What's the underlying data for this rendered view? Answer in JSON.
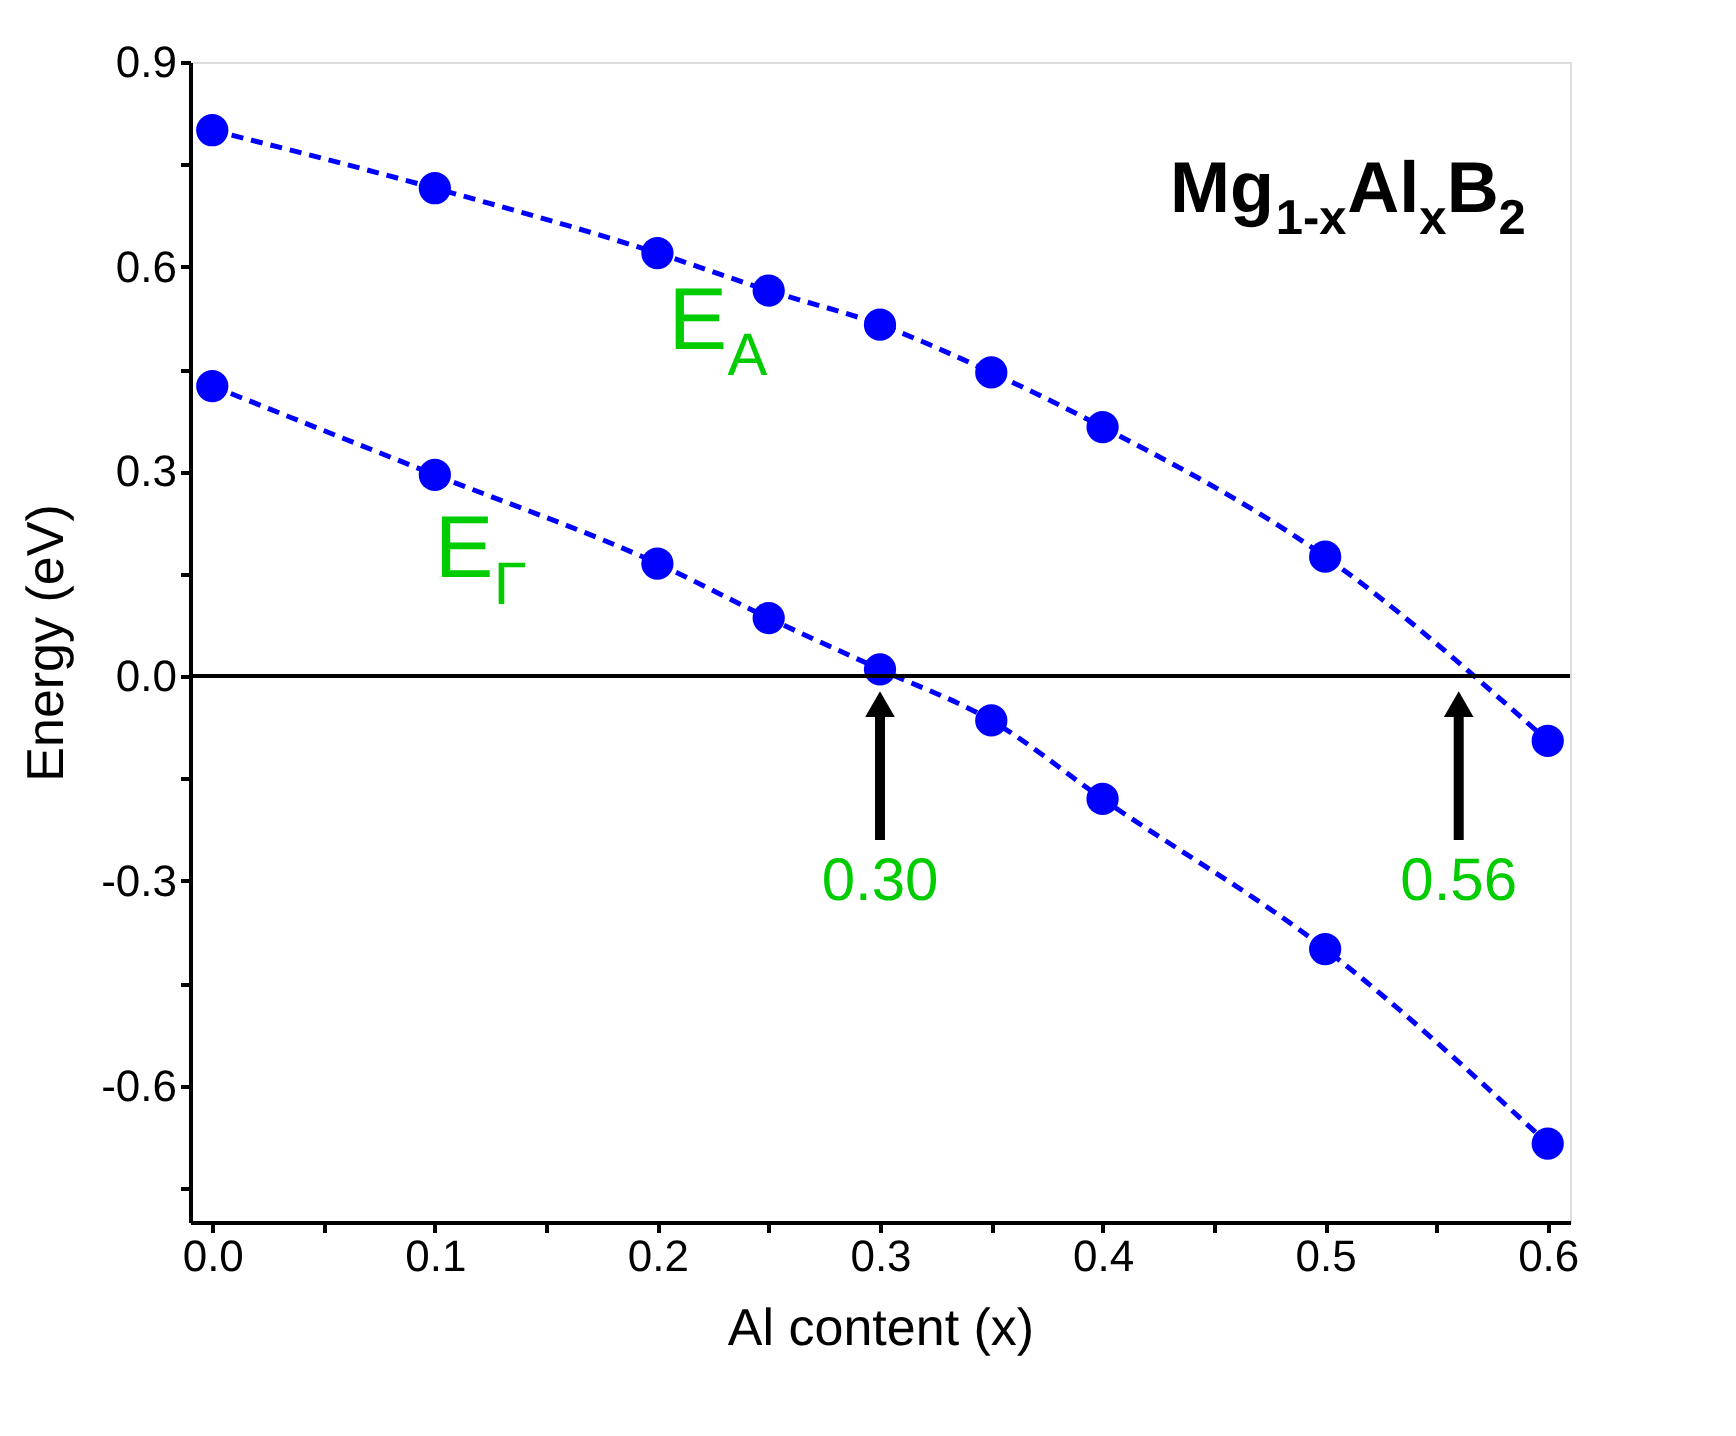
{
  "chart_data": {
    "type": "line",
    "title": "Mg$_{1-x}$Al$_{x}$B$_{2}$",
    "xlabel": "Al content  (x)",
    "ylabel": "Energy (eV)",
    "x": [
      0.0,
      0.1,
      0.2,
      0.25,
      0.3,
      0.35,
      0.4,
      0.5,
      0.6
    ],
    "series": [
      {
        "name": "E$_{A}$",
        "color": "#0000ff",
        "values": [
          0.8,
          0.715,
          0.62,
          0.565,
          0.515,
          0.445,
          0.365,
          0.175,
          -0.095
        ]
      },
      {
        "name": "E$_{Γ}$",
        "color": "#0000ff",
        "values": [
          0.425,
          0.295,
          0.165,
          0.085,
          0.01,
          -0.065,
          -0.18,
          -0.4,
          -0.685
        ]
      }
    ],
    "xlim": [
      -0.01,
      0.61
    ],
    "ylim": [
      -0.8,
      0.9
    ],
    "xticks": [
      {
        "value": 0,
        "label": "0.0"
      },
      {
        "value": 0.05,
        "label": null
      },
      0.1,
      {
        "value": 0.15,
        "label": null
      },
      0.2,
      {
        "value": 0.25,
        "label": null
      },
      0.3,
      {
        "value": 0.35,
        "label": null
      },
      0.4,
      {
        "value": 0.45,
        "label": null
      },
      0.5,
      {
        "value": 0.55,
        "label": null
      },
      0.6
    ],
    "yticks": [
      {
        "value": -0.75,
        "label": null
      },
      -0.6,
      {
        "value": -0.45,
        "label": null
      },
      -0.3,
      {
        "value": -0.15,
        "label": null
      },
      {
        "value": 0,
        "label": "0.0"
      },
      {
        "value": 0.15,
        "label": null
      },
      0.3,
      {
        "value": 0.45,
        "label": null
      },
      0.6,
      {
        "value": 0.75,
        "label": null
      },
      0.9
    ],
    "ref_lines": [
      {
        "axis": "y",
        "value": 0,
        "color": "#000000",
        "line_style": "solid"
      }
    ],
    "annotations": [
      {
        "text": "0.30",
        "x": 0.3,
        "y": 0
      },
      {
        "text": "0.56",
        "x": 0.56,
        "y": 0
      }
    ],
    "marker": "circle",
    "line_style": "dashed",
    "grid": false
  }
}
